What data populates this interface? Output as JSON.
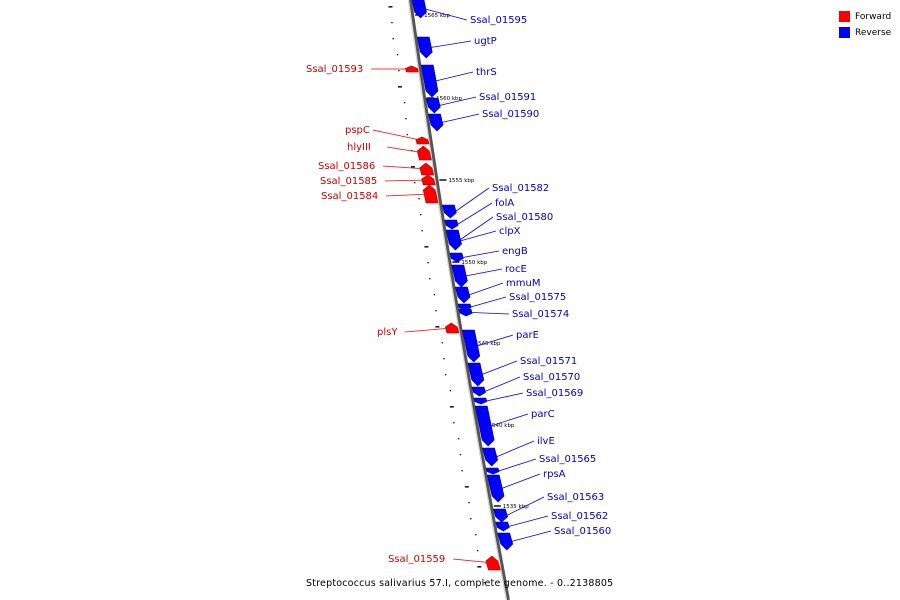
{
  "legend": {
    "forward_label": "Forward",
    "reverse_label": "Reverse",
    "forward_color": "#ff0000",
    "reverse_color": "#0000ff"
  },
  "caption": "Streptococcus salivarius 57.I, complete genome. - 0..2138805",
  "ticks": [
    "1565 kbp",
    "1560 kbp",
    "1555 kbp",
    "1550 kbp",
    "1545 kbp",
    "1540 kbp",
    "1535 kbp"
  ],
  "genes": [
    {
      "name": "Ssal_01595",
      "strand": "reverse"
    },
    {
      "name": "ugtP",
      "strand": "reverse"
    },
    {
      "name": "Ssal_01593",
      "strand": "forward"
    },
    {
      "name": "thrS",
      "strand": "reverse"
    },
    {
      "name": "Ssal_01591",
      "strand": "reverse"
    },
    {
      "name": "Ssal_01590",
      "strand": "reverse"
    },
    {
      "name": "pspC",
      "strand": "forward"
    },
    {
      "name": "hlyIII",
      "strand": "forward"
    },
    {
      "name": "Ssal_01586",
      "strand": "forward"
    },
    {
      "name": "Ssal_01585",
      "strand": "forward"
    },
    {
      "name": "Ssal_01584",
      "strand": "forward"
    },
    {
      "name": "Ssal_01582",
      "strand": "reverse"
    },
    {
      "name": "folA",
      "strand": "reverse"
    },
    {
      "name": "Ssal_01580",
      "strand": "reverse"
    },
    {
      "name": "clpX",
      "strand": "reverse"
    },
    {
      "name": "engB",
      "strand": "reverse"
    },
    {
      "name": "rocE",
      "strand": "reverse"
    },
    {
      "name": "mmuM",
      "strand": "reverse"
    },
    {
      "name": "Ssal_01575",
      "strand": "reverse"
    },
    {
      "name": "Ssal_01574",
      "strand": "reverse"
    },
    {
      "name": "plsY",
      "strand": "forward"
    },
    {
      "name": "parE",
      "strand": "reverse"
    },
    {
      "name": "Ssal_01571",
      "strand": "reverse"
    },
    {
      "name": "Ssal_01570",
      "strand": "reverse"
    },
    {
      "name": "Ssal_01569",
      "strand": "reverse"
    },
    {
      "name": "parC",
      "strand": "reverse"
    },
    {
      "name": "ilvE",
      "strand": "reverse"
    },
    {
      "name": "Ssal_01565",
      "strand": "reverse"
    },
    {
      "name": "rpsA",
      "strand": "reverse"
    },
    {
      "name": "Ssal_01563",
      "strand": "reverse"
    },
    {
      "name": "Ssal_01562",
      "strand": "reverse"
    },
    {
      "name": "Ssal_01560",
      "strand": "reverse"
    },
    {
      "name": "Ssal_01559",
      "strand": "forward"
    }
  ]
}
